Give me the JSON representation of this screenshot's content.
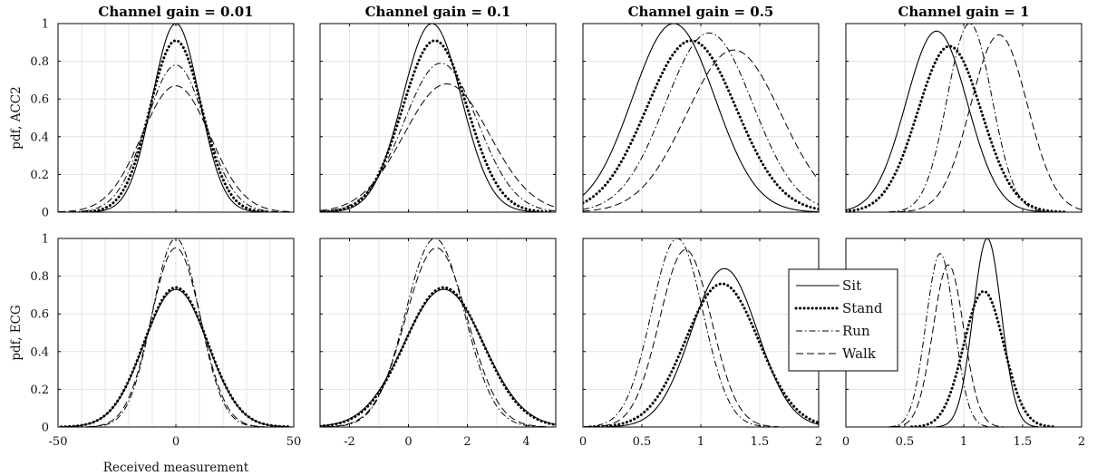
{
  "chart_data": {
    "type": "line",
    "ylabels": [
      "pdf, ACC2",
      "pdf, ECG"
    ],
    "xlabel": "Received measurement",
    "legend": {
      "placement": "in row 2, column 3-4 gap",
      "entries": [
        {
          "name": "Sit",
          "style": "solid"
        },
        {
          "name": "Stand",
          "style": "dotted-thick"
        },
        {
          "name": "Run",
          "style": "dash-dot"
        },
        {
          "name": "Walk",
          "style": "dashed"
        }
      ]
    },
    "grid": true,
    "ylim": [
      0,
      1
    ],
    "yticks": [
      0,
      0.2,
      0.4,
      0.6,
      0.8,
      1
    ],
    "columns": [
      {
        "title": "Channel gain = 0.01",
        "xlim": [
          -50,
          50
        ],
        "xticks": [
          -50,
          0,
          50
        ],
        "xgrid": [
          -40,
          -30,
          -20,
          -10,
          0,
          10,
          20,
          30,
          40
        ]
      },
      {
        "title": "Channel gain = 0.1",
        "xlim": [
          -3,
          5
        ],
        "xticks": [
          -2,
          0,
          2,
          4
        ],
        "xgrid": [
          -2,
          -1,
          0,
          1,
          2,
          3,
          4
        ]
      },
      {
        "title": "Channel gain = 0.5",
        "xlim": [
          0,
          2
        ],
        "xticks": [
          0,
          0.5,
          1,
          1.5,
          2
        ],
        "xgrid": [
          0.5,
          1,
          1.5
        ]
      },
      {
        "title": "Channel gain = 1",
        "xlim": [
          0,
          2
        ],
        "xticks": [
          0,
          0.5,
          1,
          1.5,
          2
        ],
        "xgrid": [
          0.5,
          1,
          1.5
        ]
      }
    ],
    "panels": [
      {
        "row": 0,
        "col": 0,
        "series": [
          {
            "name": "Sit",
            "mu": 0,
            "sigma": 10,
            "peak": 1.0
          },
          {
            "name": "Stand",
            "mu": 0,
            "sigma": 11,
            "peak": 0.91
          },
          {
            "name": "Run",
            "mu": 0,
            "sigma": 12.5,
            "peak": 0.78
          },
          {
            "name": "Walk",
            "mu": 0,
            "sigma": 14.5,
            "peak": 0.67
          }
        ]
      },
      {
        "row": 0,
        "col": 1,
        "series": [
          {
            "name": "Sit",
            "mu": 0.8,
            "sigma": 1.0,
            "peak": 1.0
          },
          {
            "name": "Stand",
            "mu": 0.9,
            "sigma": 1.1,
            "peak": 0.91
          },
          {
            "name": "Run",
            "mu": 1.1,
            "sigma": 1.25,
            "peak": 0.79
          },
          {
            "name": "Walk",
            "mu": 1.3,
            "sigma": 1.45,
            "peak": 0.68
          }
        ]
      },
      {
        "row": 0,
        "col": 2,
        "series": [
          {
            "name": "Sit",
            "mu": 0.77,
            "sigma": 0.35,
            "peak": 1.0
          },
          {
            "name": "Stand",
            "mu": 0.92,
            "sigma": 0.38,
            "peak": 0.91
          },
          {
            "name": "Run",
            "mu": 1.07,
            "sigma": 0.37,
            "peak": 0.95
          },
          {
            "name": "Walk",
            "mu": 1.28,
            "sigma": 0.4,
            "peak": 0.86
          }
        ]
      },
      {
        "row": 0,
        "col": 3,
        "series": [
          {
            "name": "Sit",
            "mu": 0.77,
            "sigma": 0.26,
            "peak": 0.96
          },
          {
            "name": "Stand",
            "mu": 0.88,
            "sigma": 0.27,
            "peak": 0.88
          },
          {
            "name": "Run",
            "mu": 1.05,
            "sigma": 0.19,
            "peak": 1.0
          },
          {
            "name": "Walk",
            "mu": 1.3,
            "sigma": 0.24,
            "peak": 0.94
          }
        ]
      },
      {
        "row": 1,
        "col": 0,
        "series": [
          {
            "name": "Sit",
            "mu": 0,
            "sigma": 13.5,
            "peak": 0.73
          },
          {
            "name": "Stand",
            "mu": 0,
            "sigma": 13.5,
            "peak": 0.74
          },
          {
            "name": "Run",
            "mu": 0,
            "sigma": 10,
            "peak": 1.0
          },
          {
            "name": "Walk",
            "mu": 0,
            "sigma": 10.5,
            "peak": 0.95
          }
        ]
      },
      {
        "row": 1,
        "col": 1,
        "series": [
          {
            "name": "Sit",
            "mu": 1.2,
            "sigma": 1.35,
            "peak": 0.73
          },
          {
            "name": "Stand",
            "mu": 1.2,
            "sigma": 1.32,
            "peak": 0.74
          },
          {
            "name": "Run",
            "mu": 0.9,
            "sigma": 1.0,
            "peak": 1.0
          },
          {
            "name": "Walk",
            "mu": 0.95,
            "sigma": 1.05,
            "peak": 0.95
          }
        ]
      },
      {
        "row": 1,
        "col": 2,
        "series": [
          {
            "name": "Sit",
            "mu": 1.2,
            "sigma": 0.28,
            "peak": 0.84
          },
          {
            "name": "Stand",
            "mu": 1.18,
            "sigma": 0.31,
            "peak": 0.76
          },
          {
            "name": "Run",
            "mu": 0.8,
            "sigma": 0.22,
            "peak": 1.0
          },
          {
            "name": "Walk",
            "mu": 0.87,
            "sigma": 0.22,
            "peak": 0.94
          }
        ]
      },
      {
        "row": 1,
        "col": 3,
        "series": [
          {
            "name": "Sit",
            "mu": 1.2,
            "sigma": 0.12,
            "peak": 1.0
          },
          {
            "name": "Stand",
            "mu": 1.17,
            "sigma": 0.17,
            "peak": 0.72
          },
          {
            "name": "Run",
            "mu": 0.8,
            "sigma": 0.12,
            "peak": 0.92
          },
          {
            "name": "Walk",
            "mu": 0.87,
            "sigma": 0.13,
            "peak": 0.86
          }
        ]
      }
    ]
  }
}
